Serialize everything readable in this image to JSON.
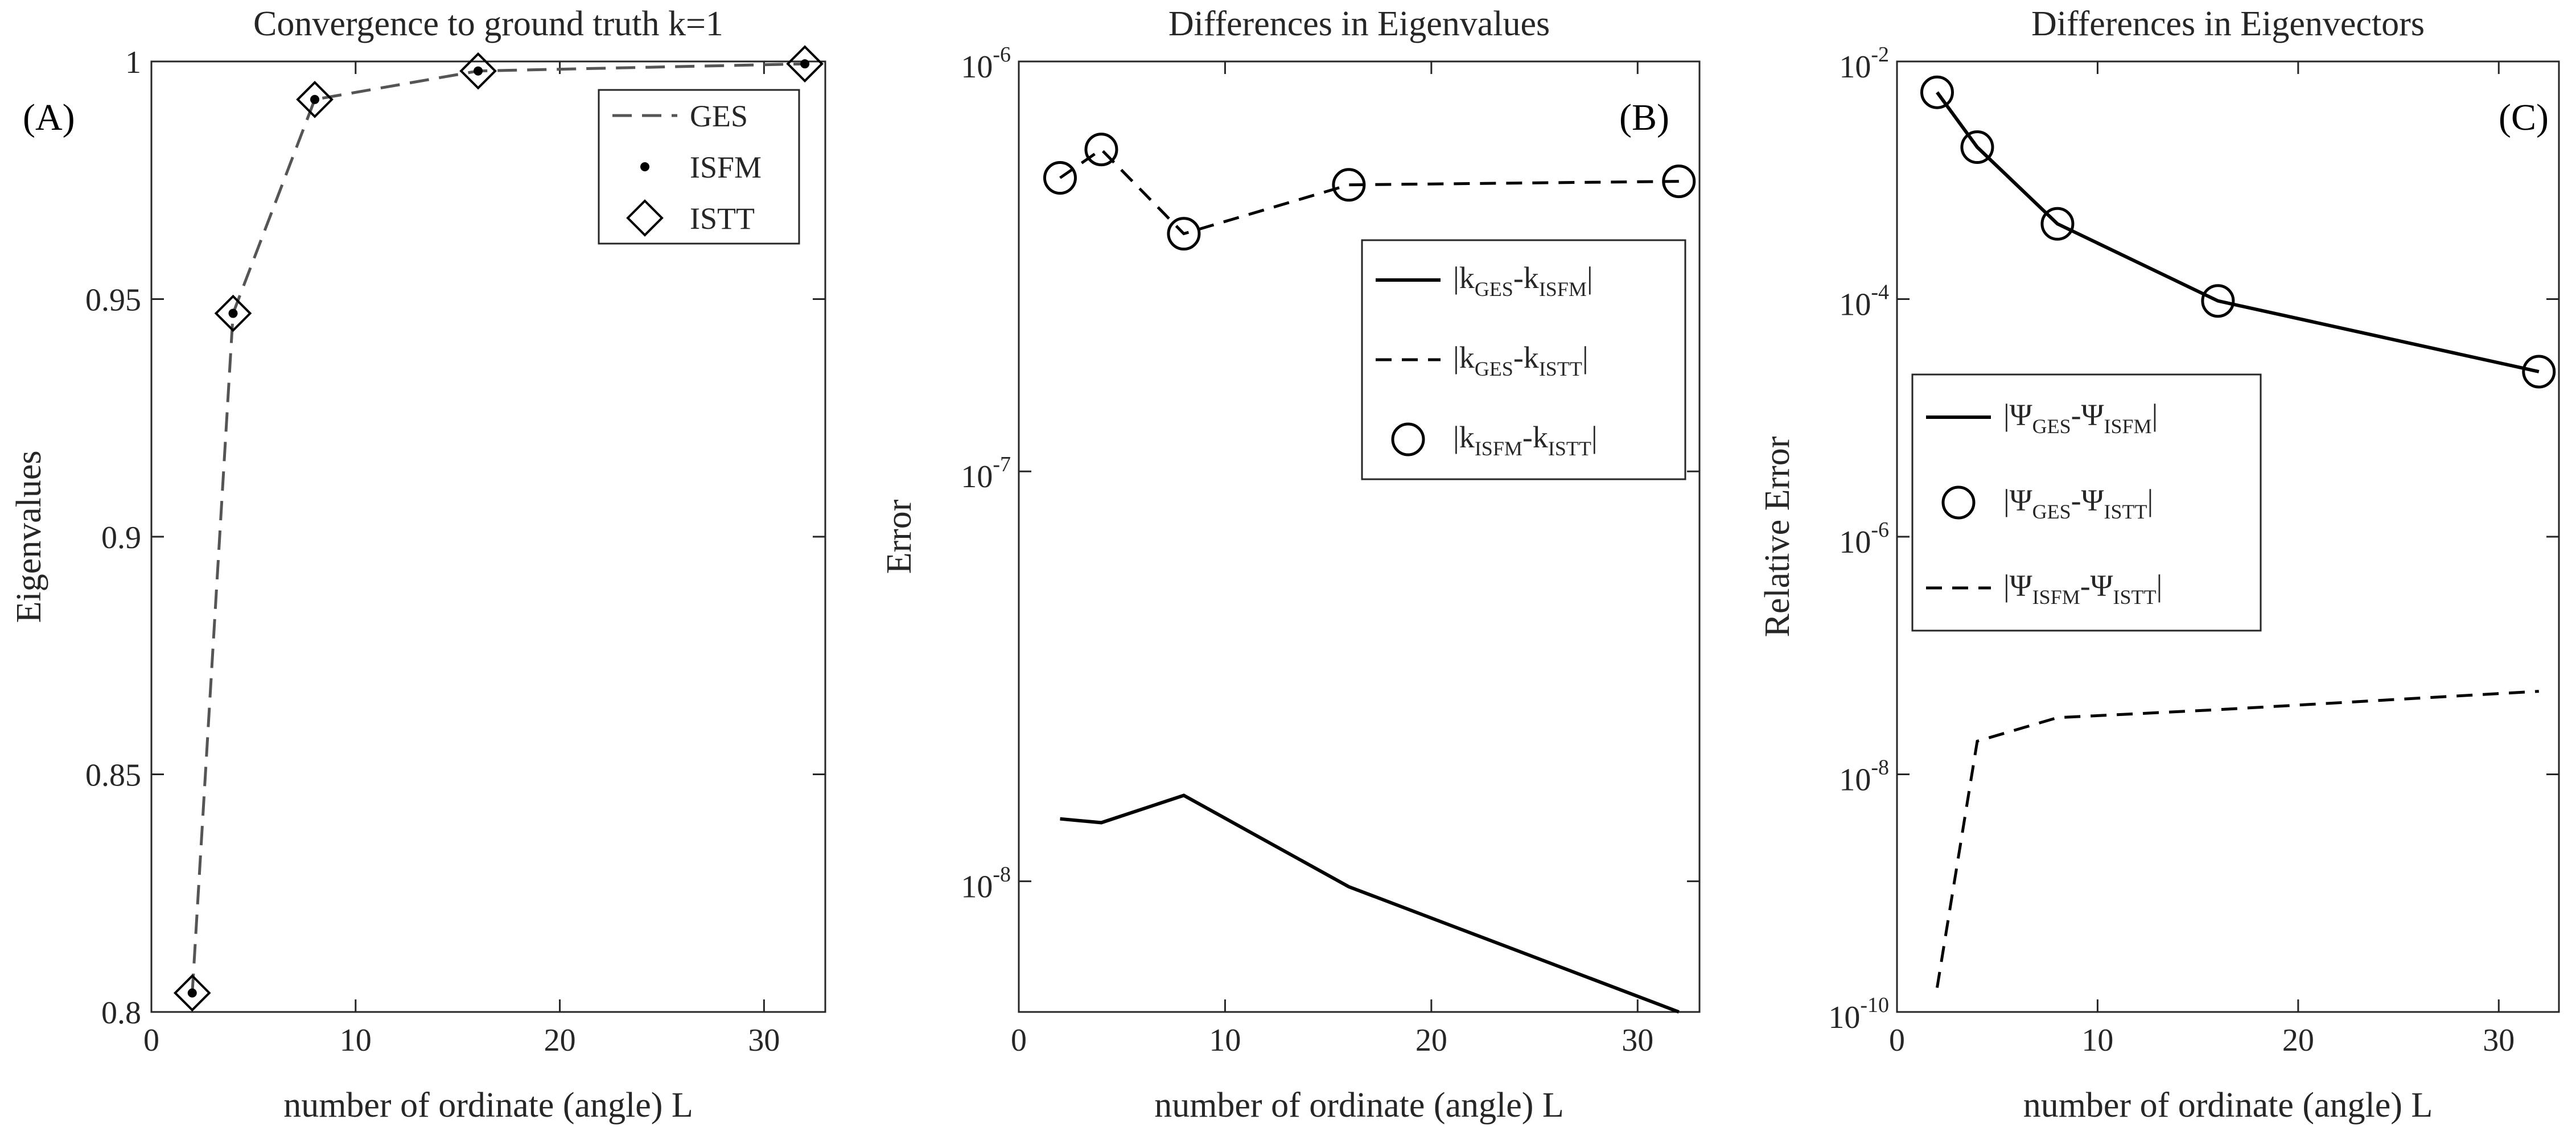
{
  "chart_data": [
    {
      "panel_label": "(A)",
      "type": "line",
      "title": "Convergence to ground truth k=1",
      "xlabel": "number of ordinate (angle) L",
      "ylabel": "Eigenvalues",
      "xlim": [
        0,
        33
      ],
      "ylim": [
        0.8,
        1.0
      ],
      "xticks": [
        "0",
        "10",
        "20",
        "30"
      ],
      "yticks": [
        "0.8",
        "0.85",
        "0.9",
        "0.95",
        "1"
      ],
      "x": [
        2,
        4,
        8,
        16,
        32
      ],
      "series": [
        {
          "name": "GES",
          "style": "dashed-line",
          "color": "#555555",
          "values": [
            0.804,
            0.947,
            0.992,
            0.998,
            0.9995
          ]
        },
        {
          "name": "ISFM",
          "style": "dot",
          "color": "#000000",
          "values": [
            0.804,
            0.947,
            0.992,
            0.998,
            0.9995
          ]
        },
        {
          "name": "ISTT",
          "style": "diamond",
          "color": "#000000",
          "values": [
            0.804,
            0.947,
            0.992,
            0.998,
            0.9995
          ]
        }
      ],
      "legend": {
        "position": "top-right",
        "entries": [
          "GES",
          "ISFM",
          "ISTT"
        ]
      }
    },
    {
      "panel_label": "(B)",
      "type": "line",
      "title": "Differences in Eigenvalues",
      "xlabel": "number of ordinate (angle) L",
      "ylabel": "Error",
      "yscale": "log",
      "xlim": [
        0,
        33
      ],
      "ylim": [
        4.8e-09,
        1e-06
      ],
      "xticks": [
        "0",
        "10",
        "20",
        "30"
      ],
      "yticks": [
        {
          "base": "10",
          "exp": "-8",
          "value": 1e-08
        },
        {
          "base": "10",
          "exp": "-7",
          "value": 1e-07
        },
        {
          "base": "10",
          "exp": "-6",
          "value": 1e-06
        }
      ],
      "x": [
        2,
        4,
        8,
        16,
        32
      ],
      "series": [
        {
          "name": "|kGES-kISFM|",
          "style": "solid-line",
          "values": [
            1.42e-08,
            1.39e-08,
            1.62e-08,
            9.7e-09,
            4.8e-09
          ]
        },
        {
          "name": "|kGES-kISTT|",
          "style": "dashed-line",
          "values": [
            5.2e-07,
            6.1e-07,
            3.8e-07,
            5e-07,
            5.1e-07
          ]
        },
        {
          "name": "|kISFM-kISTT|",
          "style": "circle",
          "values": [
            5.2e-07,
            6.1e-07,
            3.8e-07,
            5e-07,
            5.1e-07
          ]
        }
      ],
      "legend": {
        "position": "upper-right",
        "entries": [
          {
            "pre": "|k",
            "sub1": "GES",
            "mid": "-k",
            "sub2": "ISFM",
            "post": "|"
          },
          {
            "pre": "|k",
            "sub1": "GES",
            "mid": "-k",
            "sub2": "ISTT",
            "post": "|"
          },
          {
            "pre": "|k",
            "sub1": "ISFM",
            "mid": "-k",
            "sub2": "ISTT",
            "post": "|"
          }
        ]
      }
    },
    {
      "panel_label": "(C)",
      "type": "line",
      "title": "Differences in Eigenvectors",
      "xlabel": "number of ordinate (angle) L",
      "ylabel": "Relative Error",
      "yscale": "log",
      "xlim": [
        0,
        33
      ],
      "ylim": [
        1e-10,
        0.01
      ],
      "xticks": [
        "0",
        "10",
        "20",
        "30"
      ],
      "yticks": [
        {
          "base": "10",
          "exp": "-10",
          "value": 1e-10
        },
        {
          "base": "10",
          "exp": "-8",
          "value": 1e-08
        },
        {
          "base": "10",
          "exp": "-6",
          "value": 1e-06
        },
        {
          "base": "10",
          "exp": "-4",
          "value": 0.0001
        },
        {
          "base": "10",
          "exp": "-2",
          "value": 0.01
        }
      ],
      "x": [
        2,
        4,
        8,
        16,
        32
      ],
      "series": [
        {
          "name": "|ΨGES-ΨISFM|",
          "style": "solid-line",
          "values": [
            0.0055,
            0.0019,
            0.00043,
            9.65e-05,
            2.45e-05
          ]
        },
        {
          "name": "|ΨGES-ΨISTT|",
          "style": "circle",
          "values": [
            0.0055,
            0.0019,
            0.00043,
            9.65e-05,
            2.45e-05
          ]
        },
        {
          "name": "|ΨISFM-ΨISTT|",
          "style": "dashed-line",
          "values": [
            1.6e-10,
            1.9e-08,
            3e-08,
            3.5e-08,
            5e-08
          ]
        }
      ],
      "legend": {
        "position": "middle-left",
        "entries": [
          {
            "pre": "|Ψ",
            "sub1": "GES",
            "mid": "-Ψ",
            "sub2": "ISFM",
            "post": "|"
          },
          {
            "pre": "|Ψ",
            "sub1": "GES",
            "mid": "-Ψ",
            "sub2": "ISTT",
            "post": "|"
          },
          {
            "pre": "|Ψ",
            "sub1": "ISFM",
            "mid": "-Ψ",
            "sub2": "ISTT",
            "post": "|"
          }
        ]
      }
    }
  ]
}
